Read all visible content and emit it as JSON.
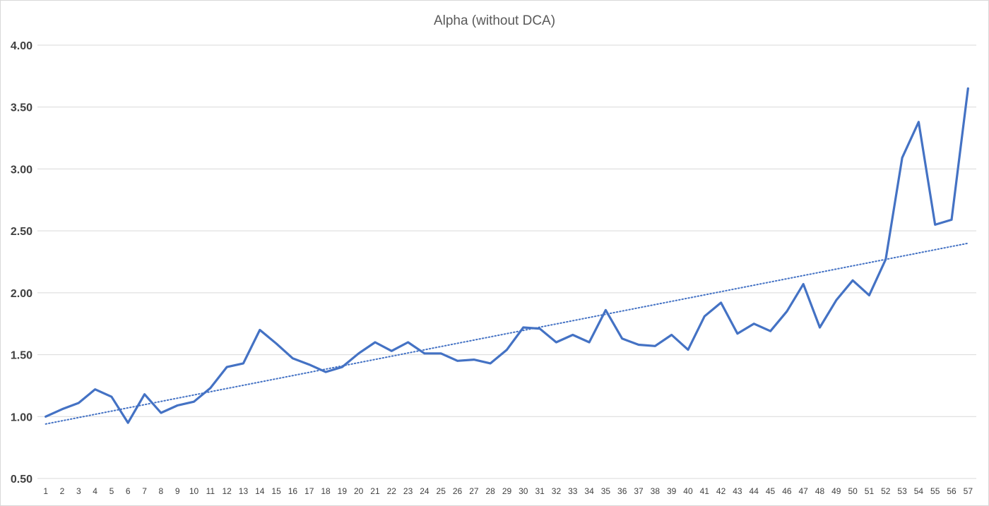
{
  "chart_data": {
    "type": "line",
    "title": "Alpha (without DCA)",
    "xlabel": "",
    "ylabel": "",
    "x": [
      1,
      2,
      3,
      4,
      5,
      6,
      7,
      8,
      9,
      10,
      11,
      12,
      13,
      14,
      15,
      16,
      17,
      18,
      19,
      20,
      21,
      22,
      23,
      24,
      25,
      26,
      27,
      28,
      29,
      30,
      31,
      32,
      33,
      34,
      35,
      36,
      37,
      38,
      39,
      40,
      41,
      42,
      43,
      44,
      45,
      46,
      47,
      48,
      49,
      50,
      51,
      52,
      53,
      54,
      55,
      56,
      57
    ],
    "xlim": [
      1,
      57
    ],
    "ylim": [
      0.5,
      4.0
    ],
    "yticks": [
      "0.50",
      "1.00",
      "1.50",
      "2.00",
      "2.50",
      "3.00",
      "3.50",
      "4.00"
    ],
    "ytick_values": [
      0.5,
      1.0,
      1.5,
      2.0,
      2.5,
      3.0,
      3.5,
      4.0
    ],
    "grid": "horizontal",
    "legend": "none",
    "series": [
      {
        "style": "solid",
        "color": "#4472C4",
        "values": [
          1.0,
          1.06,
          1.11,
          1.22,
          1.16,
          0.95,
          1.18,
          1.03,
          1.09,
          1.12,
          1.23,
          1.4,
          1.43,
          1.7,
          1.59,
          1.47,
          1.42,
          1.36,
          1.4,
          1.51,
          1.6,
          1.53,
          1.6,
          1.51,
          1.51,
          1.45,
          1.46,
          1.43,
          1.54,
          1.72,
          1.71,
          1.6,
          1.66,
          1.6,
          1.86,
          1.63,
          1.58,
          1.57,
          1.66,
          1.54,
          1.81,
          1.92,
          1.67,
          1.75,
          1.69,
          1.85,
          2.07,
          1.72,
          1.94,
          2.1,
          1.98,
          2.27,
          3.09,
          3.38,
          2.55,
          2.59,
          3.65
        ]
      },
      {
        "style": "dotted",
        "color": "#4472C4",
        "kind": "linear trendline",
        "values_at_ends": [
          0.94,
          2.4
        ]
      }
    ]
  }
}
